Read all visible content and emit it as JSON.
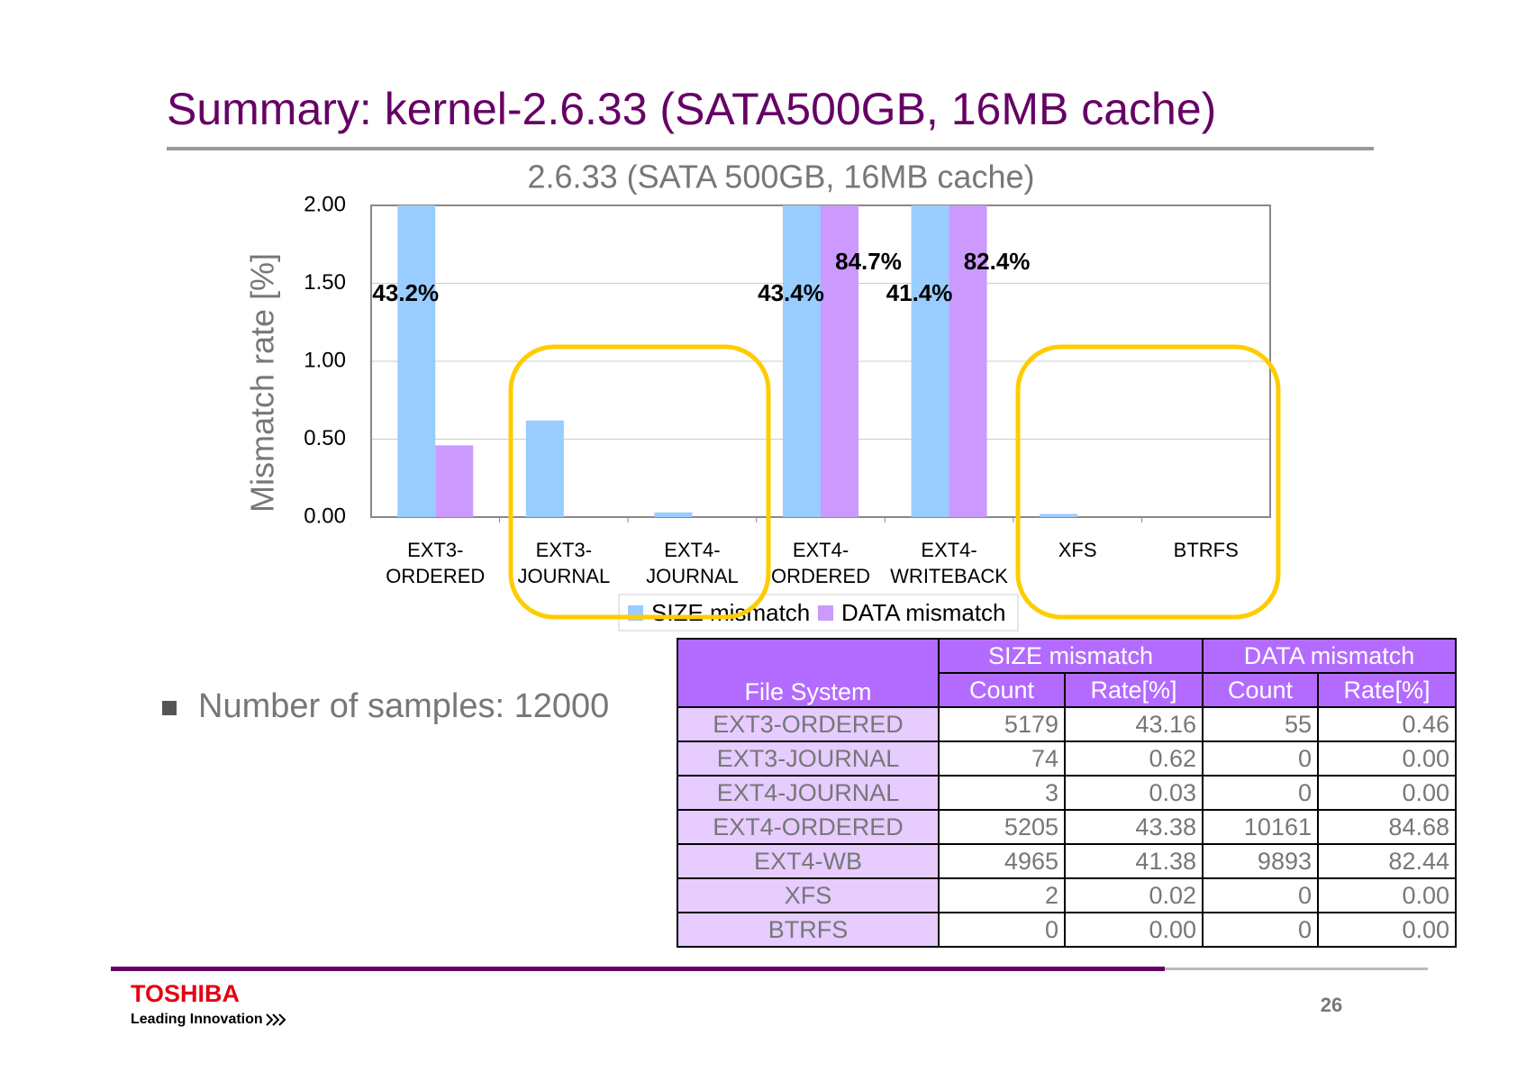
{
  "title": "Summary: kernel-2.6.33 (SATA500GB, 16MB cache)",
  "chart_data": {
    "type": "bar",
    "title": "2.6.33 (SATA 500GB, 16MB cache)",
    "y_label": "Mismatch rate [%]",
    "categories": [
      "EXT3-\nORDERED",
      "EXT3-\nJOURNAL",
      "EXT4-\nJOURNAL",
      "EXT4-\nORDERED",
      "EXT4-\nWRITEBACK",
      "XFS",
      "BTRFS"
    ],
    "series": [
      {
        "name": "SIZE mismatch",
        "color": "#99ccff",
        "values": [
          43.16,
          0.62,
          0.03,
          43.38,
          41.38,
          0.02,
          0.0
        ],
        "value_labels": [
          "43.2%",
          null,
          null,
          "43.4%",
          "41.4%",
          null,
          null
        ]
      },
      {
        "name": "DATA mismatch",
        "color": "#cc99ff",
        "values": [
          0.46,
          0.0,
          0.0,
          84.68,
          82.44,
          0.0,
          0.0
        ],
        "value_labels": [
          null,
          null,
          null,
          "84.7%",
          "82.4%",
          null,
          null
        ]
      }
    ],
    "ylim": [
      0,
      2
    ],
    "yticks": [
      {
        "value": 0,
        "label": "0.00"
      },
      {
        "value": 0.5,
        "label": "0.50"
      },
      {
        "value": 1,
        "label": "1.00"
      },
      {
        "value": 1.5,
        "label": "1.50"
      },
      {
        "value": 2,
        "label": "2.00"
      }
    ],
    "grid": true,
    "legend": "bottom"
  },
  "bullet": "Number of samples: 12000",
  "table": {
    "header": {
      "file_system": "File System",
      "groups": [
        "SIZE mismatch",
        "DATA mismatch"
      ],
      "columns": [
        "Count",
        "Rate[%]",
        "Count",
        "Rate[%]"
      ]
    },
    "rows": [
      [
        "EXT3-ORDERED",
        "5179",
        "43.16",
        "55",
        "0.46"
      ],
      [
        "EXT3-JOURNAL",
        "74",
        "0.62",
        "0",
        "0.00"
      ],
      [
        "EXT4-JOURNAL",
        "3",
        "0.03",
        "0",
        "0.00"
      ],
      [
        "EXT4-ORDERED",
        "5205",
        "43.38",
        "10161",
        "84.68"
      ],
      [
        "EXT4-WB",
        "4965",
        "41.38",
        "9893",
        "82.44"
      ],
      [
        "XFS",
        "2",
        "0.02",
        "0",
        "0.00"
      ],
      [
        "BTRFS",
        "0",
        "0.00",
        "0",
        "0.00"
      ]
    ]
  },
  "footer": {
    "brand": "TOSHIBA",
    "tagline": "Leading Innovation",
    "page": "26"
  }
}
